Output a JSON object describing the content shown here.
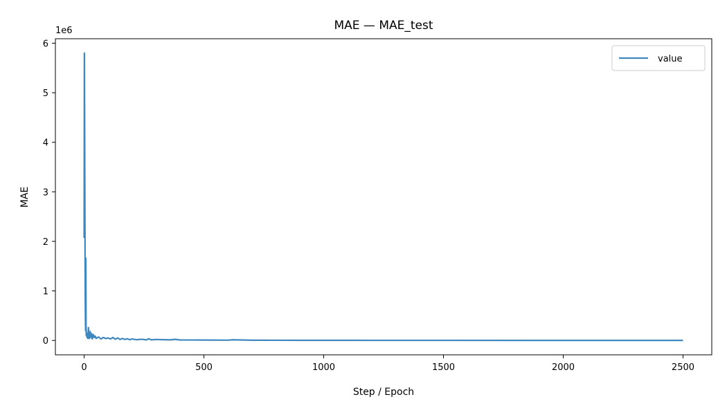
{
  "chart_data": {
    "type": "line",
    "title": "MAE — MAE_test",
    "xlabel": "Step / Epoch",
    "ylabel": "MAE",
    "y_scale_label": "1e6",
    "xlim": [
      -120,
      2620
    ],
    "ylim": [
      -290000,
      6090000
    ],
    "x_ticks": [
      0,
      500,
      1000,
      1500,
      2000,
      2500
    ],
    "y_ticks": [
      0,
      1000000,
      2000000,
      3000000,
      4000000,
      5000000,
      6000000
    ],
    "y_tick_labels": [
      "0",
      "1",
      "2",
      "3",
      "4",
      "5",
      "6"
    ],
    "grid": false,
    "legend": {
      "position": "top-right",
      "entries": [
        "value"
      ]
    },
    "series": [
      {
        "name": "value",
        "color": "#3f87bf",
        "x": [
          0,
          1,
          2,
          3,
          4,
          5,
          6,
          7,
          8,
          9,
          10,
          12,
          14,
          16,
          18,
          20,
          22,
          25,
          28,
          31,
          34,
          38,
          42,
          46,
          50,
          60,
          70,
          80,
          90,
          100,
          110,
          120,
          130,
          140,
          150,
          160,
          170,
          180,
          190,
          200,
          220,
          240,
          260,
          270,
          280,
          300,
          330,
          360,
          380,
          400,
          450,
          500,
          600,
          620,
          700,
          800,
          900,
          1000,
          1200,
          1500,
          2000,
          2500
        ],
        "y": [
          2070000,
          5800000,
          4600000,
          3000000,
          1500000,
          600000,
          200000,
          1660000,
          300000,
          100000,
          160000,
          60000,
          120000,
          40000,
          260000,
          80000,
          40000,
          180000,
          60000,
          140000,
          30000,
          120000,
          60000,
          90000,
          40000,
          70000,
          30000,
          60000,
          40000,
          50000,
          30000,
          60000,
          25000,
          50000,
          20000,
          40000,
          20000,
          35000,
          15000,
          30000,
          15000,
          25000,
          12000,
          35000,
          12000,
          20000,
          15000,
          12000,
          22000,
          10000,
          9000,
          8000,
          6000,
          14000,
          5000,
          4000,
          3500,
          3000,
          2500,
          2000,
          1500,
          1000
        ]
      }
    ]
  }
}
